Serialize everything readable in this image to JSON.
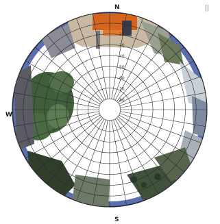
{
  "compass": {
    "north": "N",
    "south": "S",
    "west": "W"
  },
  "corner_note": "||",
  "altitude_labels": [
    "20",
    "30",
    "40",
    "50",
    "60",
    "70",
    "80"
  ],
  "grid": {
    "azimuth_step_deg": 10,
    "altitude_rings_deg": [
      0,
      10,
      20,
      30,
      40,
      50,
      60,
      70,
      80
    ]
  },
  "colors": {
    "grid_line": "#2b2b2b",
    "sky": "#ffffff",
    "rim_dark": "#2a2a3a",
    "rim_blue": "#5a6fb0",
    "roof_orange": "#d4651e",
    "foliage": "#3f5f3a"
  },
  "scenery": {
    "top": "orange-roofed building",
    "left": "tree with dense foliage",
    "bottom": "trees and vegetation"
  }
}
